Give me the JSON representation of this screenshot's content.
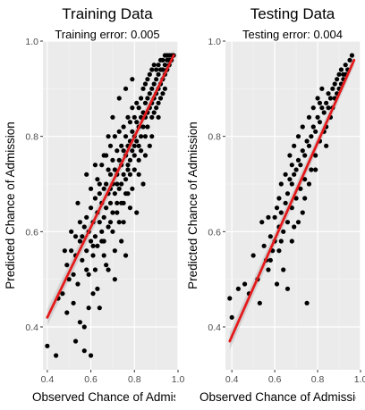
{
  "chart_data": [
    {
      "type": "scatter",
      "title": "Training Data",
      "subtitle": "Training error: 0.005",
      "xlabel": "Observed Chance of Admission",
      "ylabel": "Predicted Chance of Admission",
      "xlim": [
        0.38,
        1.0
      ],
      "ylim": [
        0.31,
        1.0
      ],
      "xticks": [
        "0.4",
        "0.6",
        "0.8",
        "1.0"
      ],
      "yticks": [
        "0.4",
        "0.6",
        "0.8",
        "1.0"
      ],
      "xtick_values": [
        0.4,
        0.6,
        0.8,
        1.0
      ],
      "ytick_values": [
        0.4,
        0.6,
        0.8,
        1.0
      ],
      "grid": true,
      "fit_line": {
        "x": [
          0.4,
          0.98
        ],
        "y": [
          0.42,
          0.97
        ],
        "color": "#e41a1c"
      },
      "points": [
        [
          0.4,
          0.36
        ],
        [
          0.44,
          0.34
        ],
        [
          0.45,
          0.46
        ],
        [
          0.47,
          0.47
        ],
        [
          0.48,
          0.56
        ],
        [
          0.49,
          0.43
        ],
        [
          0.5,
          0.5
        ],
        [
          0.51,
          0.6
        ],
        [
          0.52,
          0.45
        ],
        [
          0.52,
          0.51
        ],
        [
          0.53,
          0.55
        ],
        [
          0.53,
          0.37
        ],
        [
          0.54,
          0.66
        ],
        [
          0.54,
          0.49
        ],
        [
          0.55,
          0.58
        ],
        [
          0.55,
          0.41
        ],
        [
          0.56,
          0.54
        ],
        [
          0.56,
          0.59
        ],
        [
          0.57,
          0.61
        ],
        [
          0.57,
          0.4
        ],
        [
          0.57,
          0.35
        ],
        [
          0.58,
          0.56
        ],
        [
          0.58,
          0.63
        ],
        [
          0.58,
          0.52
        ],
        [
          0.59,
          0.6
        ],
        [
          0.59,
          0.44
        ],
        [
          0.6,
          0.65
        ],
        [
          0.6,
          0.58
        ],
        [
          0.6,
          0.34
        ],
        [
          0.61,
          0.62
        ],
        [
          0.61,
          0.55
        ],
        [
          0.61,
          0.47
        ],
        [
          0.62,
          0.59
        ],
        [
          0.62,
          0.67
        ],
        [
          0.62,
          0.52
        ],
        [
          0.63,
          0.64
        ],
        [
          0.63,
          0.71
        ],
        [
          0.63,
          0.57
        ],
        [
          0.64,
          0.62
        ],
        [
          0.64,
          0.68
        ],
        [
          0.64,
          0.44
        ],
        [
          0.65,
          0.66
        ],
        [
          0.65,
          0.6
        ],
        [
          0.65,
          0.74
        ],
        [
          0.66,
          0.63
        ],
        [
          0.66,
          0.69
        ],
        [
          0.66,
          0.55
        ],
        [
          0.67,
          0.7
        ],
        [
          0.67,
          0.65
        ],
        [
          0.67,
          0.76
        ],
        [
          0.68,
          0.68
        ],
        [
          0.68,
          0.61
        ],
        [
          0.68,
          0.73
        ],
        [
          0.68,
          0.52
        ],
        [
          0.69,
          0.72
        ],
        [
          0.69,
          0.66
        ],
        [
          0.69,
          0.78
        ],
        [
          0.7,
          0.7
        ],
        [
          0.7,
          0.64
        ],
        [
          0.7,
          0.75
        ],
        [
          0.7,
          0.6
        ],
        [
          0.71,
          0.73
        ],
        [
          0.71,
          0.68
        ],
        [
          0.71,
          0.8
        ],
        [
          0.71,
          0.5
        ],
        [
          0.72,
          0.72
        ],
        [
          0.72,
          0.66
        ],
        [
          0.72,
          0.77
        ],
        [
          0.73,
          0.75
        ],
        [
          0.73,
          0.69
        ],
        [
          0.73,
          0.81
        ],
        [
          0.73,
          0.62
        ],
        [
          0.74,
          0.74
        ],
        [
          0.74,
          0.7
        ],
        [
          0.74,
          0.78
        ],
        [
          0.74,
          0.58
        ],
        [
          0.75,
          0.77
        ],
        [
          0.75,
          0.72
        ],
        [
          0.75,
          0.82
        ],
        [
          0.75,
          0.66
        ],
        [
          0.76,
          0.76
        ],
        [
          0.76,
          0.71
        ],
        [
          0.76,
          0.8
        ],
        [
          0.76,
          0.55
        ],
        [
          0.77,
          0.78
        ],
        [
          0.77,
          0.74
        ],
        [
          0.77,
          0.84
        ],
        [
          0.77,
          0.68
        ],
        [
          0.78,
          0.79
        ],
        [
          0.78,
          0.75
        ],
        [
          0.78,
          0.72
        ],
        [
          0.78,
          0.83
        ],
        [
          0.79,
          0.81
        ],
        [
          0.79,
          0.77
        ],
        [
          0.79,
          0.69
        ],
        [
          0.79,
          0.86
        ],
        [
          0.8,
          0.8
        ],
        [
          0.8,
          0.76
        ],
        [
          0.8,
          0.84
        ],
        [
          0.8,
          0.73
        ],
        [
          0.81,
          0.83
        ],
        [
          0.81,
          0.79
        ],
        [
          0.81,
          0.87
        ],
        [
          0.81,
          0.64
        ],
        [
          0.82,
          0.82
        ],
        [
          0.82,
          0.78
        ],
        [
          0.82,
          0.86
        ],
        [
          0.82,
          0.75
        ],
        [
          0.83,
          0.84
        ],
        [
          0.83,
          0.8
        ],
        [
          0.83,
          0.88
        ],
        [
          0.83,
          0.77
        ],
        [
          0.84,
          0.85
        ],
        [
          0.84,
          0.82
        ],
        [
          0.84,
          0.9
        ],
        [
          0.84,
          0.7
        ],
        [
          0.85,
          0.87
        ],
        [
          0.85,
          0.84
        ],
        [
          0.85,
          0.8
        ],
        [
          0.85,
          0.91
        ],
        [
          0.86,
          0.88
        ],
        [
          0.86,
          0.85
        ],
        [
          0.86,
          0.82
        ],
        [
          0.86,
          0.92
        ],
        [
          0.87,
          0.89
        ],
        [
          0.87,
          0.86
        ],
        [
          0.87,
          0.93
        ],
        [
          0.87,
          0.78
        ],
        [
          0.88,
          0.9
        ],
        [
          0.88,
          0.87
        ],
        [
          0.88,
          0.94
        ],
        [
          0.88,
          0.84
        ],
        [
          0.89,
          0.91
        ],
        [
          0.89,
          0.88
        ],
        [
          0.89,
          0.95
        ],
        [
          0.89,
          0.85
        ],
        [
          0.9,
          0.92
        ],
        [
          0.9,
          0.89
        ],
        [
          0.9,
          0.94
        ],
        [
          0.9,
          0.86
        ],
        [
          0.91,
          0.93
        ],
        [
          0.91,
          0.9
        ],
        [
          0.91,
          0.95
        ],
        [
          0.91,
          0.87
        ],
        [
          0.92,
          0.94
        ],
        [
          0.92,
          0.91
        ],
        [
          0.92,
          0.96
        ],
        [
          0.92,
          0.88
        ],
        [
          0.93,
          0.94
        ],
        [
          0.93,
          0.92
        ],
        [
          0.93,
          0.96
        ],
        [
          0.93,
          0.89
        ],
        [
          0.94,
          0.95
        ],
        [
          0.94,
          0.93
        ],
        [
          0.94,
          0.97
        ],
        [
          0.94,
          0.9
        ],
        [
          0.95,
          0.96
        ],
        [
          0.95,
          0.94
        ],
        [
          0.95,
          0.97
        ],
        [
          0.96,
          0.96
        ],
        [
          0.96,
          0.95
        ],
        [
          0.96,
          0.97
        ],
        [
          0.97,
          0.97
        ],
        [
          0.97,
          0.96
        ],
        [
          0.98,
          0.97
        ],
        [
          0.66,
          0.58
        ],
        [
          0.69,
          0.62
        ],
        [
          0.72,
          0.64
        ],
        [
          0.74,
          0.66
        ],
        [
          0.76,
          0.68
        ],
        [
          0.64,
          0.7
        ],
        [
          0.62,
          0.74
        ],
        [
          0.6,
          0.69
        ],
        [
          0.58,
          0.72
        ],
        [
          0.66,
          0.76
        ],
        [
          0.68,
          0.8
        ],
        [
          0.7,
          0.84
        ],
        [
          0.73,
          0.88
        ],
        [
          0.76,
          0.9
        ],
        [
          0.79,
          0.92
        ],
        [
          0.55,
          0.62
        ],
        [
          0.53,
          0.59
        ],
        [
          0.51,
          0.56
        ],
        [
          0.49,
          0.53
        ],
        [
          0.59,
          0.51
        ],
        [
          0.63,
          0.48
        ],
        [
          0.67,
          0.53
        ],
        [
          0.71,
          0.56
        ],
        [
          0.75,
          0.62
        ],
        [
          0.78,
          0.65
        ],
        [
          0.82,
          0.72
        ],
        [
          0.85,
          0.76
        ],
        [
          0.88,
          0.8
        ],
        [
          0.91,
          0.84
        ],
        [
          0.61,
          0.57
        ],
        [
          0.65,
          0.58
        ],
        [
          0.69,
          0.69
        ],
        [
          0.72,
          0.7
        ],
        [
          0.77,
          0.73
        ],
        [
          0.8,
          0.78
        ]
      ]
    },
    {
      "type": "scatter",
      "title": "Testing Data",
      "subtitle": "Testing error: 0.004",
      "xlabel": "Observed Chance of Admission",
      "ylabel": "Predicted Chance of Admission",
      "xlim": [
        0.37,
        1.0
      ],
      "ylim": [
        0.31,
        1.0
      ],
      "xticks": [
        "0.4",
        "0.6",
        "0.8",
        "1.0"
      ],
      "yticks": [
        "0.4",
        "0.6",
        "0.8",
        "1.0"
      ],
      "xtick_values": [
        0.4,
        0.6,
        0.8,
        1.0
      ],
      "ytick_values": [
        0.4,
        0.6,
        0.8,
        1.0
      ],
      "grid": true,
      "fit_line": {
        "x": [
          0.39,
          0.97
        ],
        "y": [
          0.37,
          0.96
        ],
        "color": "#e41a1c"
      },
      "points": [
        [
          0.39,
          0.46
        ],
        [
          0.4,
          0.42
        ],
        [
          0.43,
          0.48
        ],
        [
          0.46,
          0.49
        ],
        [
          0.48,
          0.47
        ],
        [
          0.5,
          0.55
        ],
        [
          0.52,
          0.5
        ],
        [
          0.54,
          0.62
        ],
        [
          0.55,
          0.57
        ],
        [
          0.56,
          0.54
        ],
        [
          0.57,
          0.52
        ],
        [
          0.58,
          0.59
        ],
        [
          0.59,
          0.56
        ],
        [
          0.6,
          0.63
        ],
        [
          0.6,
          0.58
        ],
        [
          0.61,
          0.65
        ],
        [
          0.61,
          0.49
        ],
        [
          0.62,
          0.61
        ],
        [
          0.62,
          0.67
        ],
        [
          0.63,
          0.64
        ],
        [
          0.63,
          0.7
        ],
        [
          0.64,
          0.6
        ],
        [
          0.64,
          0.52
        ],
        [
          0.65,
          0.66
        ],
        [
          0.65,
          0.72
        ],
        [
          0.66,
          0.68
        ],
        [
          0.66,
          0.62
        ],
        [
          0.67,
          0.71
        ],
        [
          0.67,
          0.76
        ],
        [
          0.68,
          0.7
        ],
        [
          0.68,
          0.74
        ],
        [
          0.68,
          0.65
        ],
        [
          0.69,
          0.72
        ],
        [
          0.69,
          0.78
        ],
        [
          0.7,
          0.73
        ],
        [
          0.7,
          0.67
        ],
        [
          0.71,
          0.75
        ],
        [
          0.71,
          0.8
        ],
        [
          0.72,
          0.74
        ],
        [
          0.72,
          0.69
        ],
        [
          0.73,
          0.77
        ],
        [
          0.73,
          0.82
        ],
        [
          0.74,
          0.76
        ],
        [
          0.74,
          0.71
        ],
        [
          0.75,
          0.79
        ],
        [
          0.75,
          0.45
        ],
        [
          0.76,
          0.78
        ],
        [
          0.76,
          0.84
        ],
        [
          0.77,
          0.8
        ],
        [
          0.77,
          0.73
        ],
        [
          0.78,
          0.82
        ],
        [
          0.78,
          0.86
        ],
        [
          0.79,
          0.81
        ],
        [
          0.79,
          0.76
        ],
        [
          0.8,
          0.84
        ],
        [
          0.8,
          0.88
        ],
        [
          0.81,
          0.83
        ],
        [
          0.81,
          0.79
        ],
        [
          0.82,
          0.86
        ],
        [
          0.82,
          0.9
        ],
        [
          0.83,
          0.85
        ],
        [
          0.83,
          0.81
        ],
        [
          0.84,
          0.87
        ],
        [
          0.84,
          0.78
        ],
        [
          0.85,
          0.89
        ],
        [
          0.85,
          0.86
        ],
        [
          0.86,
          0.88
        ],
        [
          0.86,
          0.84
        ],
        [
          0.87,
          0.9
        ],
        [
          0.87,
          0.86
        ],
        [
          0.88,
          0.91
        ],
        [
          0.88,
          0.88
        ],
        [
          0.89,
          0.92
        ],
        [
          0.89,
          0.89
        ],
        [
          0.9,
          0.93
        ],
        [
          0.9,
          0.9
        ],
        [
          0.91,
          0.94
        ],
        [
          0.91,
          0.91
        ],
        [
          0.92,
          0.93
        ],
        [
          0.92,
          0.92
        ],
        [
          0.93,
          0.95
        ],
        [
          0.93,
          0.93
        ],
        [
          0.94,
          0.94
        ],
        [
          0.95,
          0.96
        ],
        [
          0.96,
          0.97
        ],
        [
          0.58,
          0.54
        ],
        [
          0.63,
          0.58
        ],
        [
          0.69,
          0.61
        ],
        [
          0.73,
          0.64
        ],
        [
          0.66,
          0.48
        ],
        [
          0.79,
          0.73
        ],
        [
          0.71,
          0.62
        ],
        [
          0.76,
          0.7
        ],
        [
          0.53,
          0.45
        ],
        [
          0.81,
          0.87
        ],
        [
          0.57,
          0.63
        ],
        [
          0.84,
          0.82
        ],
        [
          0.68,
          0.58
        ],
        [
          0.74,
          0.67
        ],
        [
          0.62,
          0.56
        ]
      ]
    }
  ]
}
